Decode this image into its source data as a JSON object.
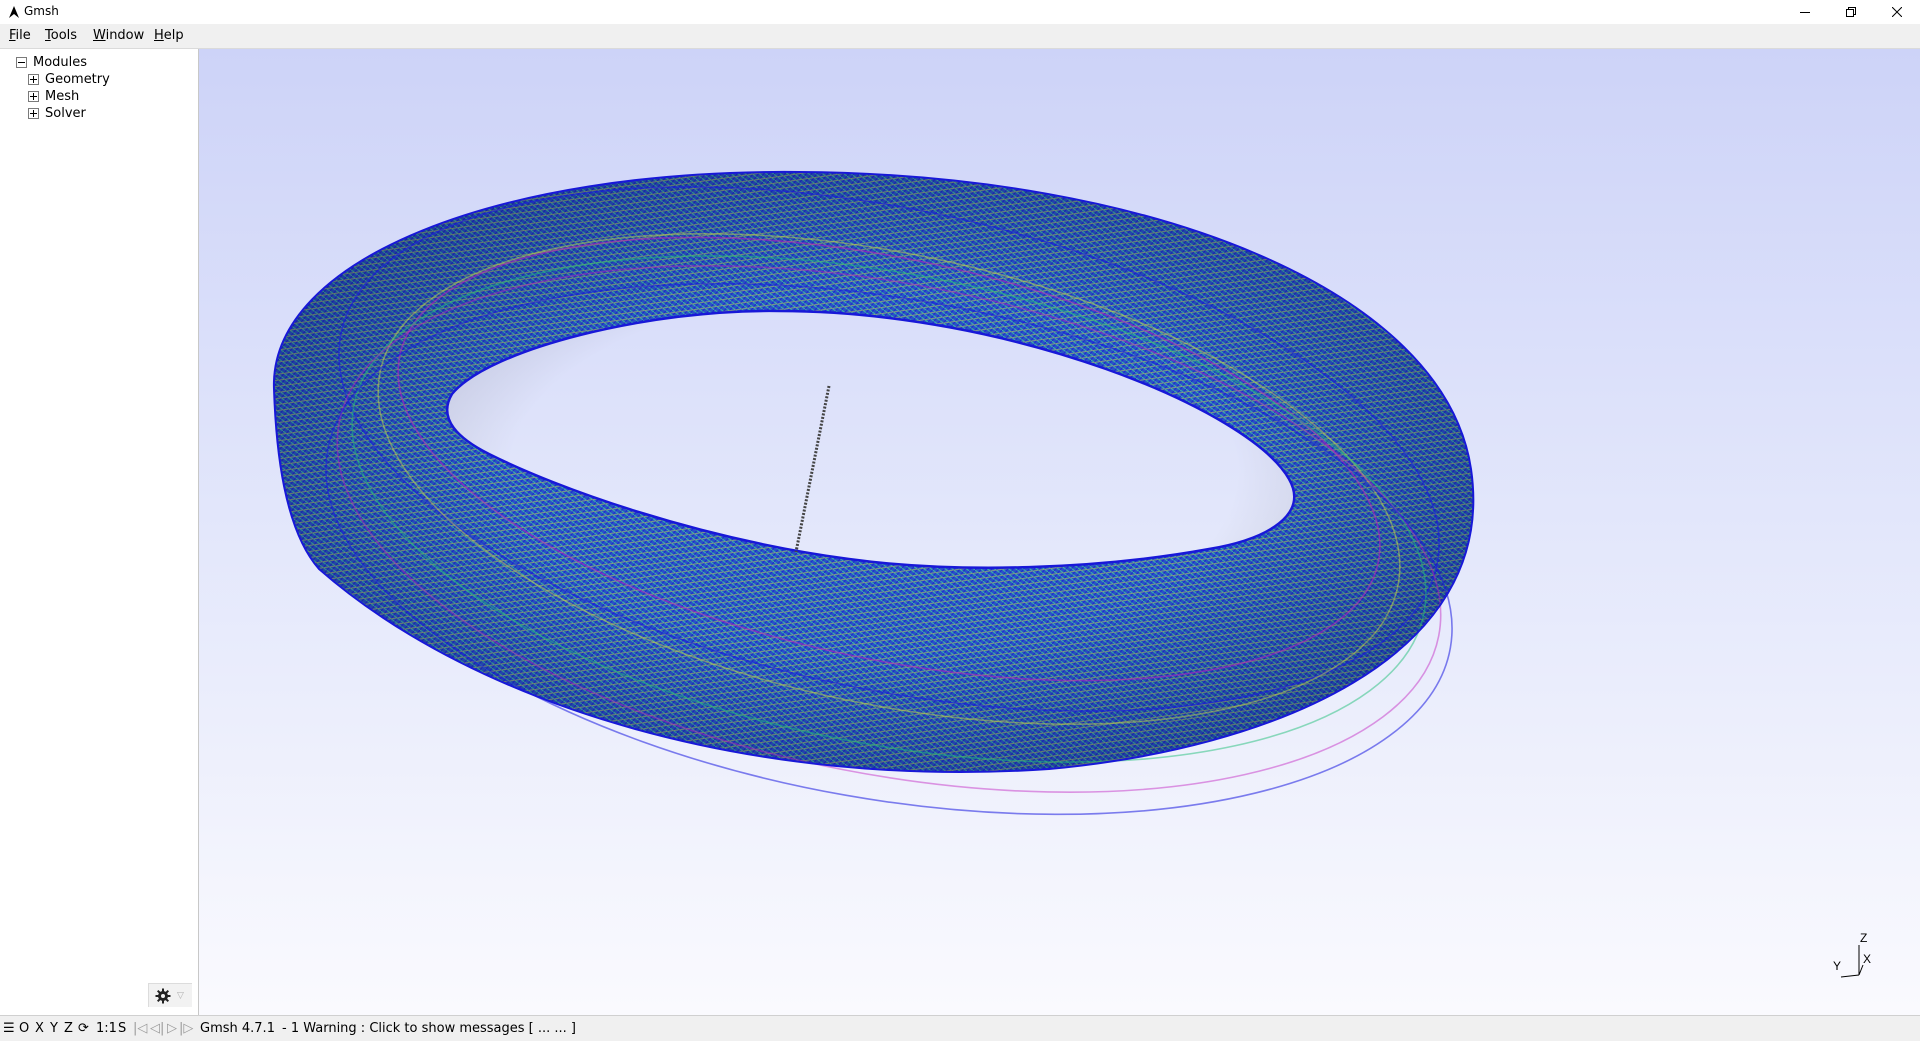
{
  "window": {
    "title": "Gmsh"
  },
  "menu": [
    {
      "id": "file",
      "label": "File",
      "accel": "F"
    },
    {
      "id": "tools",
      "label": "Tools",
      "accel": "T"
    },
    {
      "id": "window",
      "label": "Window",
      "accel": "W"
    },
    {
      "id": "help",
      "label": "Help",
      "accel": "H"
    }
  ],
  "tree": {
    "root": "Modules",
    "children": [
      "Geometry",
      "Mesh",
      "Solver"
    ]
  },
  "axes": {
    "z": "Z",
    "y": "Y",
    "x": "X"
  },
  "status": {
    "menu_icon": "☰",
    "o": "O",
    "x": "X",
    "y": "Y",
    "z": "Z",
    "rotate_icon": "⟳",
    "scale": "1:1",
    "s": "S",
    "version": "Gmsh 4.7.1",
    "message": "-   1 Warning : Click to show messages [ ...   ... ]"
  },
  "colors": {
    "background_top": "#cdd3f8",
    "background_bottom": "#fafafe",
    "mesh_blue": "#1a24d6",
    "mesh_green": "#22c07a",
    "mesh_yellow": "#d8e040",
    "mesh_magenta": "#c020c0"
  }
}
